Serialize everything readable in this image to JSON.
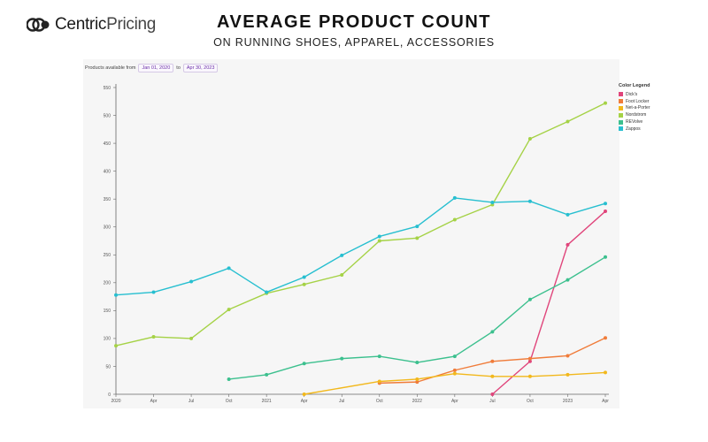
{
  "brand": {
    "name_part1": "Centric",
    "name_part2": "Pricing"
  },
  "header": {
    "title": "AVERAGE PRODUCT COUNT",
    "subtitle": "ON RUNNING SHOES, APPAREL, ACCESSORIES"
  },
  "filter": {
    "label": "Products available from",
    "from": "Jan 01, 2020",
    "to_label": "to",
    "to": "Apr 30, 2023"
  },
  "chart_data": {
    "type": "line",
    "title": "",
    "xlabel": "",
    "ylabel": "",
    "ylim": [
      0,
      550
    ],
    "y_ticks": [
      0,
      50,
      100,
      150,
      200,
      250,
      300,
      350,
      400,
      450,
      500,
      550
    ],
    "x_ticks": [
      "2020",
      "Apr",
      "Jul",
      "Oct",
      "2021",
      "Apr",
      "Jul",
      "Oct",
      "2022",
      "Apr",
      "Jul",
      "Oct",
      "2023",
      "Apr"
    ],
    "grid": false,
    "legend_title": "Color Legend",
    "legend_position": "top-right",
    "series": [
      {
        "name": "Dick's",
        "color": "#e0457b",
        "points": [
          [
            10,
            0
          ],
          [
            11,
            59
          ],
          [
            12,
            268
          ],
          [
            13,
            328
          ]
        ]
      },
      {
        "name": "Foot Locker",
        "color": "#f07c3a",
        "points": [
          [
            7,
            20
          ],
          [
            8,
            22
          ],
          [
            9,
            43
          ],
          [
            10,
            59
          ],
          [
            11,
            64
          ],
          [
            12,
            69
          ],
          [
            13,
            101
          ]
        ]
      },
      {
        "name": "Net-a-Porter",
        "color": "#f2b81c",
        "points": [
          [
            5,
            0
          ],
          [
            7,
            23
          ],
          [
            8,
            27
          ],
          [
            9,
            37
          ],
          [
            10,
            32
          ],
          [
            11,
            32
          ],
          [
            12,
            35
          ],
          [
            13,
            39
          ]
        ]
      },
      {
        "name": "Nordstrom",
        "color": "#a5d246",
        "points": [
          [
            0,
            87
          ],
          [
            1,
            103
          ],
          [
            2,
            100
          ],
          [
            3,
            152
          ],
          [
            4,
            181
          ],
          [
            5,
            197
          ],
          [
            6,
            214
          ],
          [
            7,
            275
          ],
          [
            8,
            280
          ],
          [
            9,
            313
          ],
          [
            10,
            340
          ],
          [
            11,
            458
          ],
          [
            12,
            489
          ],
          [
            13,
            522
          ]
        ]
      },
      {
        "name": "REVolve",
        "color": "#3cc08e",
        "points": [
          [
            3,
            27
          ],
          [
            4,
            35
          ],
          [
            5,
            55
          ],
          [
            6,
            64
          ],
          [
            7,
            68
          ],
          [
            8,
            57
          ],
          [
            9,
            68
          ],
          [
            10,
            112
          ],
          [
            11,
            170
          ],
          [
            12,
            205
          ],
          [
            13,
            246
          ]
        ]
      },
      {
        "name": "Zappos",
        "color": "#27bfd0",
        "points": [
          [
            0,
            178
          ],
          [
            1,
            183
          ],
          [
            2,
            202
          ],
          [
            3,
            226
          ],
          [
            4,
            183
          ],
          [
            5,
            210
          ],
          [
            6,
            249
          ],
          [
            7,
            283
          ],
          [
            8,
            301
          ],
          [
            9,
            352
          ],
          [
            10,
            344
          ],
          [
            11,
            346
          ],
          [
            12,
            322
          ],
          [
            13,
            342
          ]
        ]
      }
    ]
  }
}
